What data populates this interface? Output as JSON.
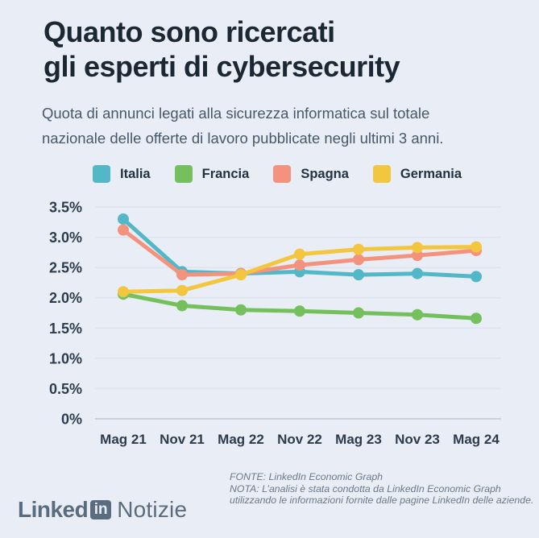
{
  "page": {
    "background": "#e9edf6"
  },
  "header": {
    "title_line1": "Quanto sono ricercati",
    "title_line2": "gli esperti di cybersecurity",
    "subtitle": "Quota di annunci legati alla sicurezza informatica sul totale nazionale delle offerte di lavoro pubblicate negli ultimi 3 anni."
  },
  "chart_data": {
    "type": "line",
    "x": [
      "Mag 21",
      "Nov 21",
      "Mag 22",
      "Nov 22",
      "Mag 23",
      "Nov 23",
      "Mag 24"
    ],
    "series": [
      {
        "name": "Italia",
        "color": "#52b7c7",
        "values": [
          3.3,
          2.43,
          2.4,
          2.43,
          2.38,
          2.4,
          2.35
        ]
      },
      {
        "name": "Francia",
        "color": "#74c05c",
        "values": [
          2.06,
          1.87,
          1.8,
          1.78,
          1.75,
          1.72,
          1.66
        ]
      },
      {
        "name": "Spagna",
        "color": "#f4937d",
        "values": [
          3.12,
          2.38,
          2.4,
          2.54,
          2.63,
          2.7,
          2.78
        ]
      },
      {
        "name": "Germania",
        "color": "#f2c63e",
        "values": [
          2.1,
          2.12,
          2.38,
          2.72,
          2.8,
          2.83,
          2.84
        ]
      }
    ],
    "ylim": [
      0,
      3.5
    ],
    "ytick_step": 0.5,
    "ytick_labels": [
      "0%",
      "0.5%",
      "1.0%",
      "1.5%",
      "2.0%",
      "2.5%",
      "3.0%",
      "3.5%"
    ],
    "ylabel": "",
    "xlabel": "",
    "grid": true,
    "legend_position": "top",
    "colors": {
      "grid_line": "#dde2ec",
      "axis_line": "#c5cdda",
      "tick_text": "#2d3c4d"
    }
  },
  "footer": {
    "fonte": "FONTE: LinkedIn Economic Graph",
    "nota": "NOTA: L’analisi è stata condotta da LinkedIn Economic Graph utilizzando le informazioni fornite dalle pagine LinkedIn delle aziende."
  },
  "logo": {
    "part1": "Linked",
    "badge": "in",
    "part2": "Notizie"
  }
}
